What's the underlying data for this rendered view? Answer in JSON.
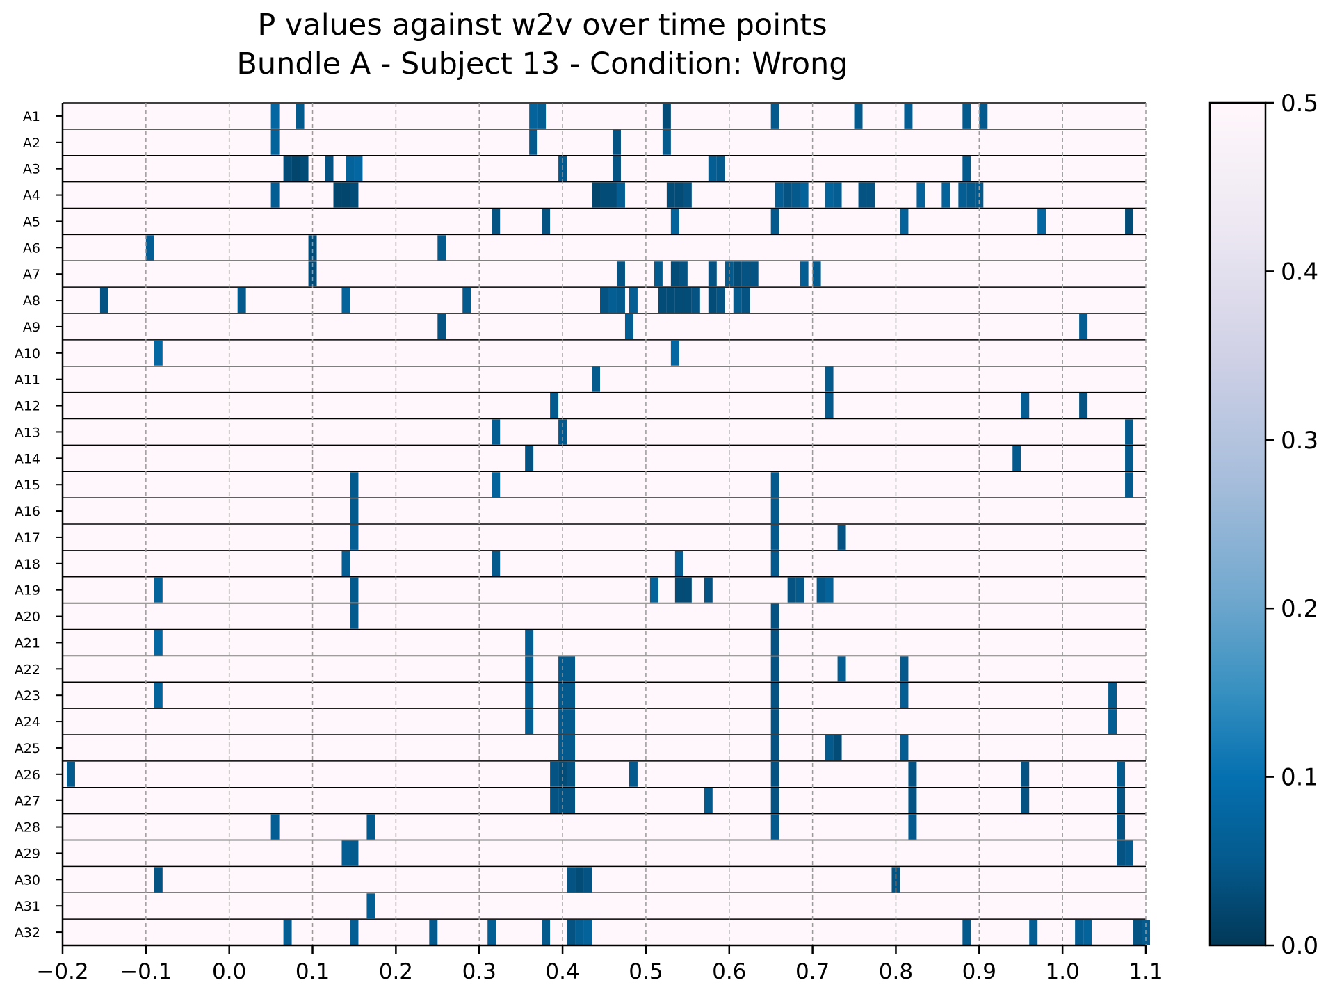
{
  "chart_data": {
    "type": "heatmap",
    "title": "P values against w2v over time points",
    "subtitle": "Bundle A - Subject 13 - Condition: Wrong",
    "xlabel": "",
    "ylabel": "",
    "xlim": [
      -0.2,
      1.1
    ],
    "x_ticks": [
      "−0.2",
      "−0.1",
      "0.0",
      "0.1",
      "0.2",
      "0.3",
      "0.4",
      "0.5",
      "0.6",
      "0.7",
      "0.8",
      "0.9",
      "1.0",
      "1.1"
    ],
    "x_tick_values": [
      -0.2,
      -0.1,
      0.0,
      0.1,
      0.2,
      0.3,
      0.4,
      0.5,
      0.6,
      0.7,
      0.8,
      0.9,
      1.0,
      1.1
    ],
    "vertical_gridlines": "dashed gray at each x tick",
    "colormap": "PuBu_r",
    "colorbar": {
      "min": 0.0,
      "max": 0.5,
      "ticks": [
        "0.0",
        "0.1",
        "0.2",
        "0.3",
        "0.4",
        "0.5"
      ],
      "tick_values": [
        0.0,
        0.1,
        0.2,
        0.3,
        0.4,
        0.5
      ],
      "placement": "right"
    },
    "background_value": 0.5,
    "cell_width_s": 0.01,
    "colors": {
      "low": "#023858",
      "mid": "#0570b0",
      "high": "#fff7fb"
    },
    "rows": [
      {
        "label": "A1",
        "cells": [
          [
            0.05,
            0.08
          ],
          [
            0.08,
            0.05
          ],
          [
            0.36,
            0.07
          ],
          [
            0.37,
            0.06
          ],
          [
            0.52,
            0.03
          ],
          [
            0.65,
            0.05
          ],
          [
            0.75,
            0.05
          ],
          [
            0.81,
            0.06
          ],
          [
            0.88,
            0.05
          ],
          [
            0.9,
            0.05
          ]
        ]
      },
      {
        "label": "A2",
        "cells": [
          [
            0.05,
            0.07
          ],
          [
            0.36,
            0.05
          ],
          [
            0.46,
            0.04
          ],
          [
            0.52,
            0.05
          ]
        ]
      },
      {
        "label": "A3",
        "cells": [
          [
            0.065,
            0.03
          ],
          [
            0.075,
            0.02
          ],
          [
            0.085,
            0.03
          ],
          [
            0.115,
            0.04
          ],
          [
            0.14,
            0.07
          ],
          [
            0.15,
            0.08
          ],
          [
            0.395,
            0.05
          ],
          [
            0.46,
            0.04
          ],
          [
            0.575,
            0.06
          ],
          [
            0.585,
            0.05
          ],
          [
            0.88,
            0.05
          ]
        ]
      },
      {
        "label": "A4",
        "cells": [
          [
            0.05,
            0.06
          ],
          [
            0.125,
            0.02
          ],
          [
            0.135,
            0.02
          ],
          [
            0.145,
            0.03
          ],
          [
            0.435,
            0.02
          ],
          [
            0.445,
            0.03
          ],
          [
            0.455,
            0.03
          ],
          [
            0.465,
            0.06
          ],
          [
            0.525,
            0.03
          ],
          [
            0.535,
            0.03
          ],
          [
            0.545,
            0.04
          ],
          [
            0.655,
            0.06
          ],
          [
            0.665,
            0.04
          ],
          [
            0.675,
            0.05
          ],
          [
            0.685,
            0.07
          ],
          [
            0.715,
            0.07
          ],
          [
            0.725,
            0.06
          ],
          [
            0.755,
            0.04
          ],
          [
            0.765,
            0.04
          ],
          [
            0.825,
            0.07
          ],
          [
            0.855,
            0.07
          ],
          [
            0.875,
            0.06
          ],
          [
            0.885,
            0.05
          ],
          [
            0.895,
            0.05
          ]
        ]
      },
      {
        "label": "A5",
        "cells": [
          [
            0.315,
            0.04
          ],
          [
            0.375,
            0.04
          ],
          [
            0.53,
            0.07
          ],
          [
            0.65,
            0.05
          ],
          [
            0.805,
            0.07
          ],
          [
            0.97,
            0.08
          ],
          [
            1.075,
            0.03
          ]
        ]
      },
      {
        "label": "A6",
        "cells": [
          [
            -0.1,
            0.06
          ],
          [
            0.095,
            0.03
          ],
          [
            0.25,
            0.05
          ]
        ]
      },
      {
        "label": "A7",
        "cells": [
          [
            0.095,
            0.03
          ],
          [
            0.465,
            0.04
          ],
          [
            0.51,
            0.05
          ],
          [
            0.53,
            0.03
          ],
          [
            0.54,
            0.04
          ],
          [
            0.575,
            0.04
          ],
          [
            0.595,
            0.05
          ],
          [
            0.605,
            0.03
          ],
          [
            0.615,
            0.04
          ],
          [
            0.625,
            0.04
          ],
          [
            0.685,
            0.06
          ],
          [
            0.7,
            0.05
          ]
        ]
      },
      {
        "label": "A8",
        "cells": [
          [
            -0.155,
            0.04
          ],
          [
            0.01,
            0.05
          ],
          [
            0.135,
            0.07
          ],
          [
            0.28,
            0.05
          ],
          [
            0.445,
            0.04
          ],
          [
            0.455,
            0.06
          ],
          [
            0.465,
            0.05
          ],
          [
            0.48,
            0.06
          ],
          [
            0.515,
            0.03
          ],
          [
            0.525,
            0.03
          ],
          [
            0.535,
            0.03
          ],
          [
            0.545,
            0.03
          ],
          [
            0.555,
            0.04
          ],
          [
            0.575,
            0.03
          ],
          [
            0.585,
            0.04
          ],
          [
            0.605,
            0.05
          ],
          [
            0.615,
            0.04
          ]
        ]
      },
      {
        "label": "A9",
        "cells": [
          [
            0.25,
            0.04
          ],
          [
            0.475,
            0.06
          ],
          [
            1.02,
            0.06
          ]
        ]
      },
      {
        "label": "A10",
        "cells": [
          [
            -0.09,
            0.08
          ],
          [
            0.53,
            0.08
          ]
        ]
      },
      {
        "label": "A11",
        "cells": [
          [
            0.435,
            0.05
          ],
          [
            0.715,
            0.05
          ]
        ]
      },
      {
        "label": "A12",
        "cells": [
          [
            0.385,
            0.05
          ],
          [
            0.715,
            0.05
          ],
          [
            0.95,
            0.06
          ],
          [
            1.02,
            0.04
          ]
        ]
      },
      {
        "label": "A13",
        "cells": [
          [
            0.315,
            0.06
          ],
          [
            0.395,
            0.05
          ],
          [
            1.075,
            0.05
          ]
        ]
      },
      {
        "label": "A14",
        "cells": [
          [
            0.355,
            0.04
          ],
          [
            0.94,
            0.05
          ],
          [
            1.075,
            0.05
          ]
        ]
      },
      {
        "label": "A15",
        "cells": [
          [
            0.145,
            0.05
          ],
          [
            0.315,
            0.07
          ],
          [
            0.65,
            0.05
          ],
          [
            1.075,
            0.05
          ]
        ]
      },
      {
        "label": "A16",
        "cells": [
          [
            0.145,
            0.05
          ],
          [
            0.65,
            0.05
          ]
        ]
      },
      {
        "label": "A17",
        "cells": [
          [
            0.145,
            0.06
          ],
          [
            0.65,
            0.05
          ],
          [
            0.73,
            0.04
          ]
        ]
      },
      {
        "label": "A18",
        "cells": [
          [
            0.135,
            0.06
          ],
          [
            0.315,
            0.05
          ],
          [
            0.535,
            0.06
          ],
          [
            0.65,
            0.05
          ]
        ]
      },
      {
        "label": "A19",
        "cells": [
          [
            -0.09,
            0.07
          ],
          [
            0.145,
            0.05
          ],
          [
            0.505,
            0.07
          ],
          [
            0.535,
            0.03
          ],
          [
            0.545,
            0.03
          ],
          [
            0.57,
            0.04
          ],
          [
            0.67,
            0.04
          ],
          [
            0.68,
            0.05
          ],
          [
            0.705,
            0.05
          ],
          [
            0.715,
            0.07
          ]
        ]
      },
      {
        "label": "A20",
        "cells": [
          [
            0.145,
            0.05
          ],
          [
            0.65,
            0.04
          ]
        ]
      },
      {
        "label": "A21",
        "cells": [
          [
            -0.09,
            0.08
          ],
          [
            0.355,
            0.06
          ],
          [
            0.65,
            0.04
          ]
        ]
      },
      {
        "label": "A22",
        "cells": [
          [
            0.355,
            0.06
          ],
          [
            0.395,
            0.05
          ],
          [
            0.405,
            0.05
          ],
          [
            0.65,
            0.04
          ],
          [
            0.73,
            0.06
          ],
          [
            0.805,
            0.05
          ]
        ]
      },
      {
        "label": "A23",
        "cells": [
          [
            -0.09,
            0.07
          ],
          [
            0.355,
            0.06
          ],
          [
            0.395,
            0.05
          ],
          [
            0.405,
            0.05
          ],
          [
            0.65,
            0.04
          ],
          [
            0.805,
            0.06
          ],
          [
            1.055,
            0.05
          ]
        ]
      },
      {
        "label": "A24",
        "cells": [
          [
            0.355,
            0.06
          ],
          [
            0.395,
            0.05
          ],
          [
            0.405,
            0.05
          ],
          [
            0.65,
            0.04
          ],
          [
            1.055,
            0.06
          ]
        ]
      },
      {
        "label": "A25",
        "cells": [
          [
            0.395,
            0.05
          ],
          [
            0.405,
            0.05
          ],
          [
            0.65,
            0.04
          ],
          [
            0.715,
            0.05
          ],
          [
            0.725,
            0.03
          ],
          [
            0.805,
            0.06
          ]
        ]
      },
      {
        "label": "A26",
        "cells": [
          [
            -0.195,
            0.05
          ],
          [
            0.385,
            0.04
          ],
          [
            0.395,
            0.03
          ],
          [
            0.405,
            0.04
          ],
          [
            0.48,
            0.05
          ],
          [
            0.65,
            0.04
          ],
          [
            0.815,
            0.04
          ],
          [
            0.95,
            0.04
          ],
          [
            1.065,
            0.05
          ]
        ]
      },
      {
        "label": "A27",
        "cells": [
          [
            0.385,
            0.04
          ],
          [
            0.395,
            0.04
          ],
          [
            0.405,
            0.04
          ],
          [
            0.57,
            0.05
          ],
          [
            0.65,
            0.04
          ],
          [
            0.815,
            0.04
          ],
          [
            0.95,
            0.04
          ],
          [
            1.065,
            0.04
          ]
        ]
      },
      {
        "label": "A28",
        "cells": [
          [
            0.05,
            0.06
          ],
          [
            0.165,
            0.05
          ],
          [
            0.65,
            0.05
          ],
          [
            0.815,
            0.05
          ],
          [
            1.065,
            0.04
          ]
        ]
      },
      {
        "label": "A29",
        "cells": [
          [
            0.135,
            0.06
          ],
          [
            0.145,
            0.05
          ],
          [
            1.065,
            0.04
          ],
          [
            1.075,
            0.05
          ]
        ]
      },
      {
        "label": "A30",
        "cells": [
          [
            -0.09,
            0.04
          ],
          [
            0.405,
            0.04
          ],
          [
            0.415,
            0.03
          ],
          [
            0.425,
            0.04
          ],
          [
            0.795,
            0.04
          ]
        ]
      },
      {
        "label": "A31",
        "cells": [
          [
            0.165,
            0.06
          ]
        ]
      },
      {
        "label": "A32",
        "cells": [
          [
            0.065,
            0.06
          ],
          [
            0.145,
            0.06
          ],
          [
            0.24,
            0.05
          ],
          [
            0.31,
            0.06
          ],
          [
            0.375,
            0.05
          ],
          [
            0.405,
            0.04
          ],
          [
            0.415,
            0.06
          ],
          [
            0.425,
            0.07
          ],
          [
            0.88,
            0.05
          ],
          [
            0.96,
            0.06
          ],
          [
            1.015,
            0.06
          ],
          [
            1.025,
            0.07
          ],
          [
            1.085,
            0.04
          ],
          [
            1.095,
            0.05
          ]
        ]
      }
    ]
  }
}
